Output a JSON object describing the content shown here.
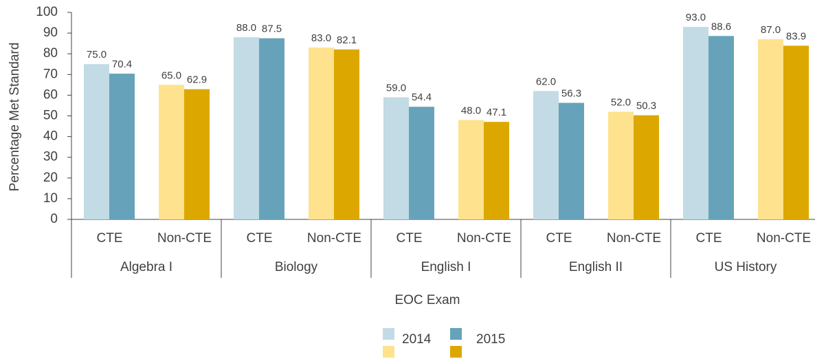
{
  "chart_data": {
    "type": "grouped_bar",
    "y_label": "Percentage Met Standard",
    "x_label": "EOC Exam",
    "groups": [
      "Algebra I",
      "Biology",
      "English I",
      "English II",
      "US History"
    ],
    "categories": [
      "CTE",
      "Non-CTE",
      "CTE",
      "Non-CTE",
      "CTE",
      "Non-CTE",
      "CTE",
      "Non-CTE",
      "CTE",
      "Non-CTE"
    ],
    "series": [
      {
        "name": "2014",
        "colors": [
          "#c2dbe4",
          "#fee28d"
        ],
        "values": [
          75,
          65,
          88,
          83,
          59,
          48,
          62,
          52,
          93,
          87
        ],
        "value_labels": [
          "75.0",
          "65.0",
          "88.0",
          "83.0",
          "59.0",
          "48.0",
          "62.0",
          "52.0",
          "93.0",
          "87.0"
        ]
      },
      {
        "name": "2015",
        "colors": [
          "#66a3ba",
          "#dca800"
        ],
        "values": [
          70.4,
          62.9,
          87.5,
          82.1,
          54.4,
          47.1,
          56.3,
          50.3,
          88.6,
          83.9
        ],
        "value_labels": [
          "70.4",
          "62.9",
          "87.5",
          "82.1",
          "54.4",
          "47.1",
          "56.3",
          "50.3",
          "88.6",
          "83.9"
        ]
      }
    ],
    "ylim": [
      0,
      100
    ],
    "yticks": [
      0,
      10,
      20,
      30,
      40,
      50,
      60,
      70,
      80,
      90,
      100
    ],
    "grid": false,
    "legend": "bottom"
  }
}
